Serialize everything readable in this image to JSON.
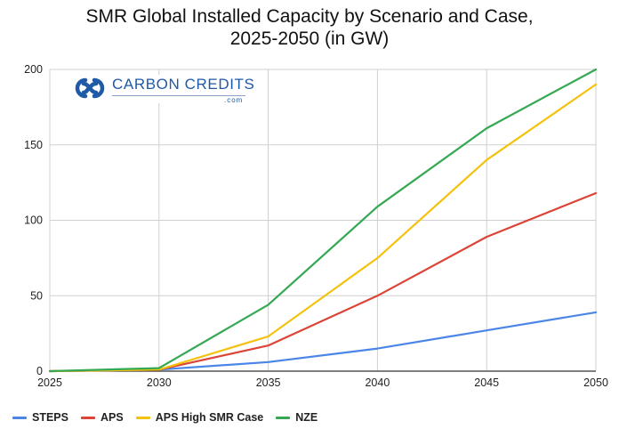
{
  "chart_data": {
    "type": "line",
    "title_lines": [
      "SMR Global Installed Capacity by Scenario and Case,",
      "2025-2050 (in GW)"
    ],
    "x": [
      "2025",
      "2030",
      "2035",
      "2040",
      "2045",
      "2050"
    ],
    "ylim": [
      0,
      200
    ],
    "yticks": [
      "0",
      "50",
      "100",
      "150",
      "200"
    ],
    "grid": true,
    "legend_position": "bottom-left",
    "series": [
      {
        "name": "STEPS",
        "color": "#4a86e8",
        "values": [
          0,
          1,
          6,
          15,
          27,
          39
        ]
      },
      {
        "name": "APS",
        "color": "#db4437",
        "values": [
          0,
          1,
          17,
          50,
          89,
          118
        ]
      },
      {
        "name": "APS High SMR Case",
        "color": "#f4c20d",
        "values": [
          0,
          1,
          23,
          75,
          140,
          190
        ]
      },
      {
        "name": "NZE",
        "color": "#34a853",
        "values": [
          0,
          2,
          44,
          109,
          161,
          200
        ]
      }
    ]
  },
  "logo": {
    "text": "CARBON CREDITS",
    "subtext": ".com"
  }
}
